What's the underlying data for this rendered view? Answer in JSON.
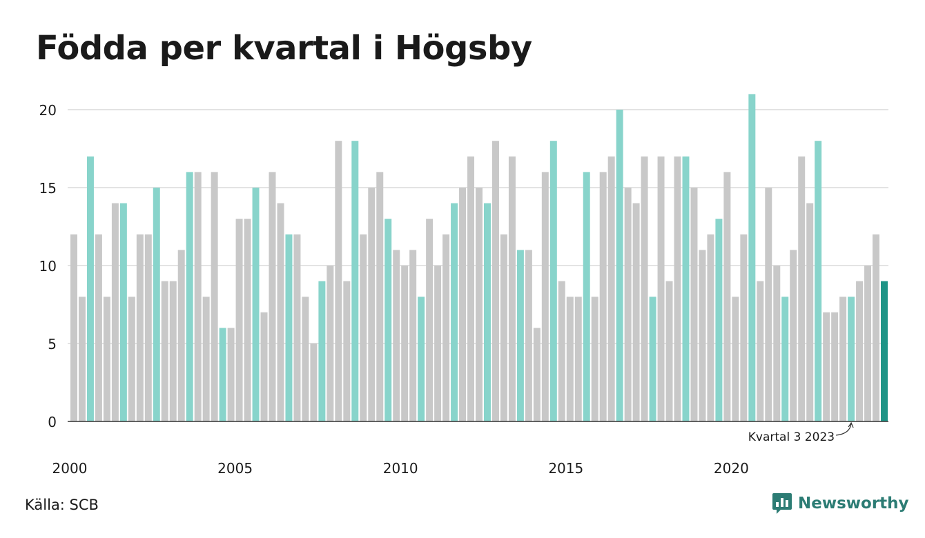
{
  "chart_data": {
    "type": "bar",
    "title": "Födda per kvartal i Högsby",
    "xlabel": "",
    "ylabel": "",
    "ylim": [
      0,
      22
    ],
    "y_ticks": [
      0,
      5,
      10,
      15,
      20
    ],
    "x_tick_labels": [
      "2000",
      "2005",
      "2010",
      "2015",
      "2020"
    ],
    "start_year": 2000,
    "grid": true,
    "legend": "none",
    "colors": {
      "q3": "#88d4cb",
      "other": "#c8c8c8",
      "latest": "#1e9486",
      "axis": "#333333",
      "grid": "#e3e3e3"
    },
    "values": [
      12,
      8,
      17,
      12,
      8,
      14,
      14,
      8,
      12,
      12,
      15,
      9,
      9,
      11,
      16,
      16,
      8,
      16,
      6,
      6,
      13,
      13,
      15,
      7,
      16,
      14,
      12,
      12,
      8,
      5,
      9,
      10,
      18,
      9,
      18,
      12,
      15,
      16,
      13,
      11,
      10,
      11,
      8,
      13,
      10,
      12,
      14,
      15,
      17,
      15,
      14,
      18,
      12,
      17,
      11,
      11,
      6,
      16,
      18,
      9,
      8,
      8,
      16,
      8,
      16,
      17,
      20,
      15,
      14,
      17,
      8,
      17,
      9,
      17,
      17,
      15,
      11,
      12,
      13,
      16,
      8,
      12,
      21,
      9,
      15,
      10,
      8,
      11,
      17,
      14,
      18,
      7,
      7,
      8,
      8,
      9,
      10,
      12,
      9
    ],
    "annotation": {
      "text": "Kvartal 3 2023",
      "target_index": 94
    }
  },
  "footer": {
    "source": "Källa: SCB",
    "brand": "Newsworthy"
  }
}
